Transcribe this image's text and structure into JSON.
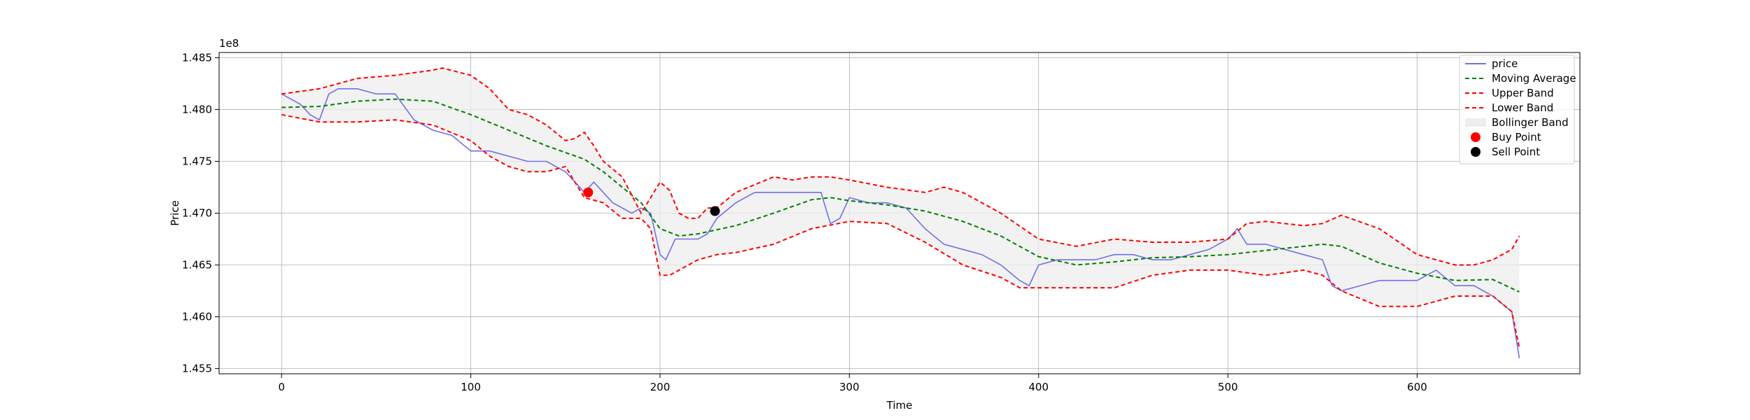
{
  "chart_data": {
    "type": "line",
    "xlabel": "Time",
    "ylabel": "Price",
    "offset_label": "1e8",
    "xlim": [
      -33,
      686
    ],
    "ylim": [
      145.45,
      148.55
    ],
    "y_scale_factor": 1000000,
    "xticks": [
      0,
      100,
      200,
      300,
      400,
      500,
      600
    ],
    "yticks": [
      145.5,
      146.0,
      146.5,
      147.0,
      147.5,
      148.0,
      148.5
    ],
    "ytick_labels": [
      "1.455",
      "1.460",
      "1.465",
      "1.470",
      "1.475",
      "1.480",
      "1.485"
    ],
    "grid": true,
    "legend_position": "top-right",
    "colors": {
      "price": "#7070e8",
      "moving_average": "#008000",
      "bands": "#ff0000",
      "band_fill": "#eeeeee",
      "buy": "#ff0000",
      "sell": "#000000"
    },
    "legend": [
      {
        "label": "price",
        "style": "price"
      },
      {
        "label": "Moving Average",
        "style": "ma"
      },
      {
        "label": "Upper Band",
        "style": "upper"
      },
      {
        "label": "Lower Band",
        "style": "lower"
      },
      {
        "label": "Bollinger Band",
        "style": "fill"
      },
      {
        "label": "Buy Point",
        "style": "buy"
      },
      {
        "label": "Sell Point",
        "style": "sell"
      }
    ],
    "series": [
      {
        "name": "price",
        "x": [
          0,
          5,
          10,
          15,
          20,
          25,
          30,
          40,
          50,
          60,
          70,
          80,
          90,
          100,
          110,
          120,
          130,
          140,
          150,
          160,
          165,
          170,
          175,
          180,
          185,
          190,
          195,
          200,
          203,
          208,
          215,
          220,
          225,
          230,
          240,
          250,
          260,
          270,
          280,
          285,
          290,
          295,
          300,
          310,
          320,
          330,
          340,
          350,
          360,
          370,
          380,
          390,
          395,
          400,
          410,
          420,
          430,
          440,
          450,
          460,
          470,
          480,
          490,
          500,
          505,
          510,
          520,
          530,
          540,
          550,
          555,
          560,
          570,
          580,
          590,
          600,
          610,
          620,
          630,
          640,
          650,
          654
        ],
        "y": [
          148.15,
          148.1,
          148.05,
          147.95,
          147.9,
          148.15,
          148.2,
          148.2,
          148.15,
          148.15,
          147.9,
          147.8,
          147.75,
          147.6,
          147.6,
          147.55,
          147.5,
          147.5,
          147.4,
          147.2,
          147.3,
          147.2,
          147.1,
          147.05,
          147.0,
          147.05,
          147.0,
          146.6,
          146.55,
          146.75,
          146.75,
          146.75,
          146.8,
          146.95,
          147.1,
          147.2,
          147.2,
          147.2,
          147.2,
          147.2,
          146.9,
          146.95,
          147.15,
          147.1,
          147.1,
          147.05,
          146.85,
          146.7,
          146.65,
          146.6,
          146.5,
          146.35,
          146.3,
          146.5,
          146.55,
          146.55,
          146.55,
          146.6,
          146.6,
          146.55,
          146.55,
          146.6,
          146.65,
          146.75,
          146.85,
          146.7,
          146.7,
          146.65,
          146.6,
          146.55,
          146.3,
          146.25,
          146.3,
          146.35,
          146.35,
          146.35,
          146.45,
          146.3,
          146.3,
          146.2,
          146.05,
          145.6
        ]
      },
      {
        "name": "Moving Average",
        "x": [
          0,
          20,
          40,
          60,
          80,
          100,
          120,
          140,
          160,
          170,
          180,
          190,
          200,
          210,
          220,
          240,
          260,
          280,
          290,
          300,
          320,
          340,
          360,
          380,
          400,
          420,
          440,
          460,
          480,
          500,
          520,
          540,
          550,
          560,
          580,
          600,
          620,
          640,
          654
        ],
        "y": [
          148.02,
          148.03,
          148.08,
          148.1,
          148.08,
          147.95,
          147.8,
          147.65,
          147.52,
          147.4,
          147.25,
          147.1,
          146.85,
          146.78,
          146.8,
          146.88,
          147.0,
          147.13,
          147.15,
          147.12,
          147.08,
          147.02,
          146.92,
          146.78,
          146.58,
          146.5,
          146.53,
          146.57,
          146.58,
          146.6,
          146.64,
          146.68,
          146.7,
          146.68,
          146.52,
          146.42,
          146.35,
          146.36,
          146.24
        ]
      },
      {
        "name": "Upper Band",
        "x": [
          0,
          20,
          40,
          60,
          80,
          85,
          100,
          110,
          120,
          130,
          140,
          150,
          155,
          160,
          165,
          170,
          180,
          190,
          200,
          205,
          210,
          215,
          220,
          225,
          230,
          240,
          260,
          270,
          280,
          290,
          300,
          320,
          340,
          350,
          360,
          380,
          400,
          420,
          440,
          460,
          480,
          500,
          510,
          520,
          540,
          550,
          560,
          580,
          600,
          620,
          630,
          640,
          650,
          654
        ],
        "y": [
          148.15,
          148.2,
          148.3,
          148.33,
          148.38,
          148.4,
          148.33,
          148.2,
          148.0,
          147.95,
          147.85,
          147.7,
          147.72,
          147.78,
          147.65,
          147.5,
          147.35,
          147.0,
          147.3,
          147.22,
          147.0,
          146.95,
          146.95,
          147.05,
          147.05,
          147.2,
          147.35,
          147.32,
          147.35,
          147.35,
          147.32,
          147.25,
          147.2,
          147.25,
          147.2,
          147.0,
          146.75,
          146.68,
          146.75,
          146.72,
          146.72,
          146.75,
          146.9,
          146.92,
          146.88,
          146.9,
          146.98,
          146.85,
          146.6,
          146.5,
          146.5,
          146.55,
          146.65,
          146.78
        ]
      },
      {
        "name": "Lower Band",
        "x": [
          0,
          20,
          40,
          60,
          80,
          100,
          110,
          120,
          130,
          140,
          150,
          155,
          160,
          170,
          180,
          190,
          195,
          200,
          205,
          210,
          220,
          230,
          240,
          260,
          280,
          300,
          320,
          340,
          360,
          380,
          390,
          400,
          420,
          440,
          460,
          480,
          500,
          520,
          540,
          550,
          560,
          580,
          600,
          620,
          630,
          640,
          650,
          654
        ],
        "y": [
          147.95,
          147.88,
          147.88,
          147.9,
          147.85,
          147.7,
          147.55,
          147.45,
          147.4,
          147.4,
          147.45,
          147.3,
          147.15,
          147.1,
          146.95,
          146.95,
          146.85,
          146.4,
          146.4,
          146.45,
          146.55,
          146.6,
          146.62,
          146.7,
          146.85,
          146.92,
          146.9,
          146.72,
          146.5,
          146.38,
          146.28,
          146.28,
          146.28,
          146.28,
          146.4,
          146.45,
          146.45,
          146.4,
          146.45,
          146.4,
          146.25,
          146.1,
          146.1,
          146.2,
          146.2,
          146.2,
          146.05,
          145.7
        ]
      }
    ],
    "buy_points": [
      {
        "x": 162,
        "y": 147.2
      }
    ],
    "sell_points": [
      {
        "x": 229,
        "y": 147.02
      }
    ]
  }
}
